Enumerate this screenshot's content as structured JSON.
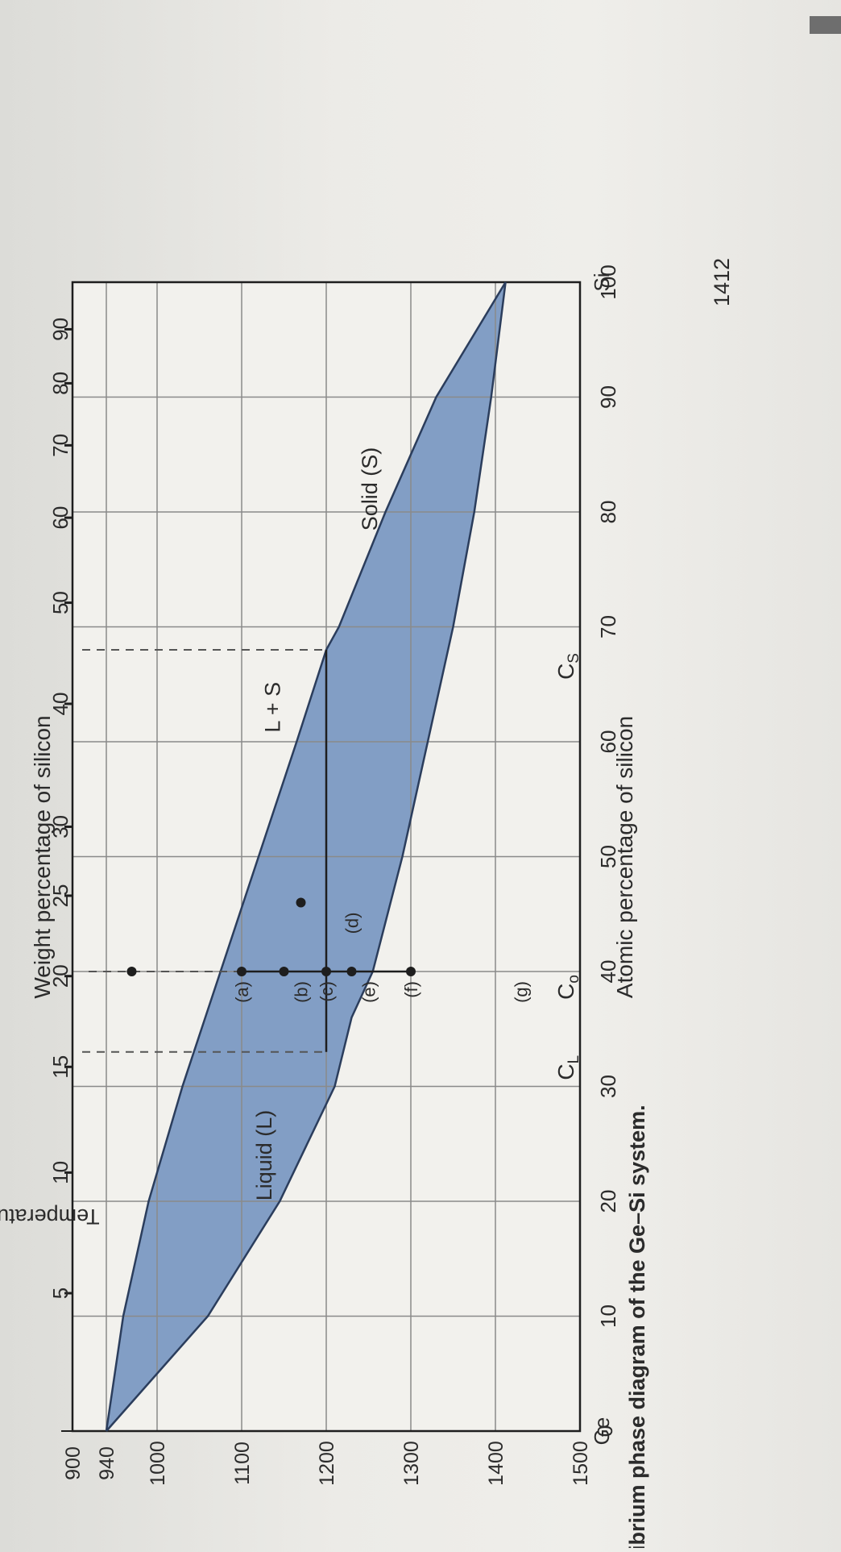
{
  "chart_data": {
    "type": "area",
    "caption": "Equilibrium phase diagram of the Ge–Si system.",
    "xlabel": "Atomic percentage of silicon",
    "x2label": "Weight percentage of silicon",
    "ylabel": "Temperature (°C)",
    "xlim": [
      0,
      100
    ],
    "ylim": [
      900,
      1500
    ],
    "x_ticks": [
      0,
      10,
      20,
      30,
      40,
      50,
      60,
      70,
      80,
      90,
      100
    ],
    "x_tick_labels": [
      "0",
      "10",
      "20",
      "30",
      "40",
      "50",
      "60",
      "70",
      "80",
      "90",
      "100"
    ],
    "x_end_labels": {
      "left": "Ge",
      "right": "Si"
    },
    "y_ticks": [
      900,
      940,
      1000,
      1100,
      1200,
      1300,
      1400,
      1500
    ],
    "y_tick_labels": [
      "900",
      "940",
      "1000",
      "1100",
      "1200",
      "1300",
      "1400",
      "1500"
    ],
    "wt_ticks": [
      {
        "wt": 5,
        "at": 12,
        "label": "5"
      },
      {
        "wt": 10,
        "at": 22.5,
        "label": "10"
      },
      {
        "wt": 15,
        "at": 31.7,
        "label": "15"
      },
      {
        "wt": 20,
        "at": 39.6,
        "label": "20"
      },
      {
        "wt": 25,
        "at": 46.6,
        "label": "25"
      },
      {
        "wt": 30,
        "at": 52.6,
        "label": "30"
      },
      {
        "wt": 40,
        "at": 63.3,
        "label": "40"
      },
      {
        "wt": 50,
        "at": 72.1,
        "label": "50"
      },
      {
        "wt": 60,
        "at": 79.5,
        "label": "60"
      },
      {
        "wt": 70,
        "at": 85.8,
        "label": "70"
      },
      {
        "wt": 80,
        "at": 91.2,
        "label": "80"
      },
      {
        "wt": 90,
        "at": 95.9,
        "label": "90"
      }
    ],
    "melting_point_label": "1412",
    "liquidus": {
      "x": [
        0,
        10,
        20,
        30,
        36,
        40,
        50,
        60,
        70,
        80,
        90,
        100
      ],
      "y": [
        940,
        1060,
        1145,
        1210,
        1230,
        1255,
        1290,
        1320,
        1350,
        1375,
        1395,
        1412
      ]
    },
    "solidus": {
      "x": [
        0,
        10,
        20,
        30,
        40,
        50,
        60,
        68,
        70,
        80,
        90,
        100
      ],
      "y": [
        940,
        960,
        990,
        1030,
        1075,
        1120,
        1165,
        1200,
        1215,
        1270,
        1330,
        1412
      ]
    },
    "regions": [
      {
        "label": "Liquid (L)",
        "x": 24,
        "y": 1265
      },
      {
        "label": "L + S",
        "x": 63,
        "y": 1255
      },
      {
        "label": "Solid (S)",
        "x": 82,
        "y": 1140
      }
    ],
    "composition_line_x": 40,
    "points": [
      {
        "label": "(a)",
        "x": 40,
        "y": 1300
      },
      {
        "label": "(b)",
        "x": 40,
        "y": 1230
      },
      {
        "label": "(c)",
        "x": 40,
        "y": 1200
      },
      {
        "label": "(d)",
        "x": 46,
        "y": 1170
      },
      {
        "label": "(e)",
        "x": 40,
        "y": 1150
      },
      {
        "label": "(f)",
        "x": 40,
        "y": 1100
      },
      {
        "label": "(g)",
        "x": 40,
        "y": 970
      }
    ],
    "tie_line": {
      "y": 1200,
      "x_from": 33,
      "x_to": 68
    },
    "composition_markers": [
      {
        "label": "C",
        "sub": "L",
        "x": 33
      },
      {
        "label": "C",
        "sub": "o",
        "x": 40
      },
      {
        "label": "C",
        "sub": "S",
        "x": 68
      }
    ],
    "grid": true,
    "colors": {
      "two_phase_fill": "#6f8fbd",
      "curve": "#2b3d5c",
      "grid": "#8a8a8a",
      "line": "#1e1e1e"
    }
  }
}
